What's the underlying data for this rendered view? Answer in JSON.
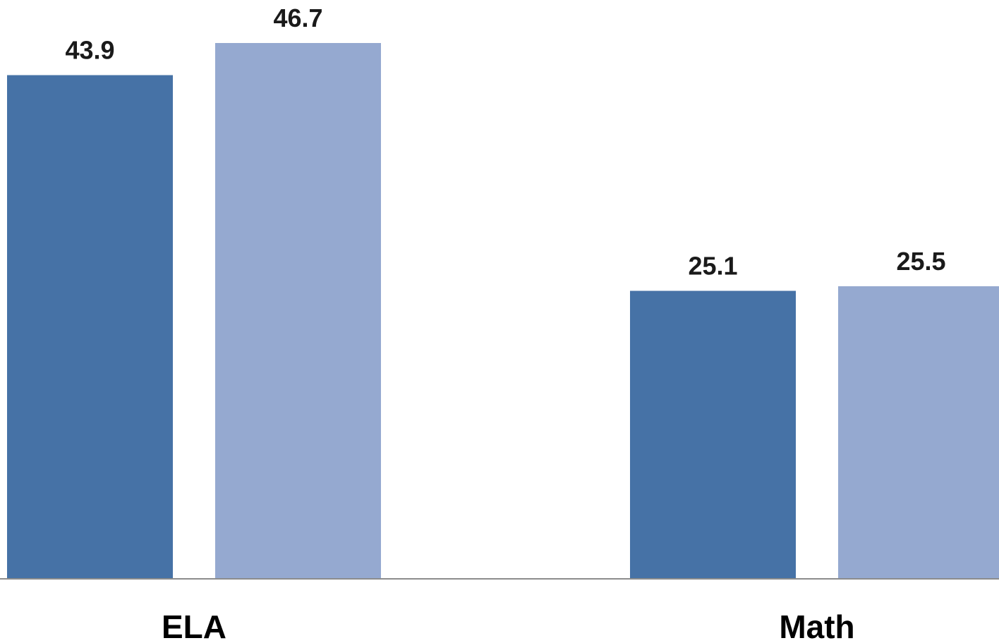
{
  "chart_data": {
    "type": "bar",
    "categories": [
      "ELA",
      "Math"
    ],
    "series": [
      {
        "values": [
          43.9,
          25.1
        ],
        "color": "#4672a6"
      },
      {
        "values": [
          46.7,
          25.5
        ],
        "color": "#95a9d0"
      }
    ],
    "value_labels": [
      [
        "43.9",
        "25.1"
      ],
      [
        "46.7",
        "25.5"
      ]
    ],
    "ylim": [
      0,
      46.7
    ],
    "axis_color": "#8c8c8c",
    "grid": false,
    "legend": "none"
  }
}
